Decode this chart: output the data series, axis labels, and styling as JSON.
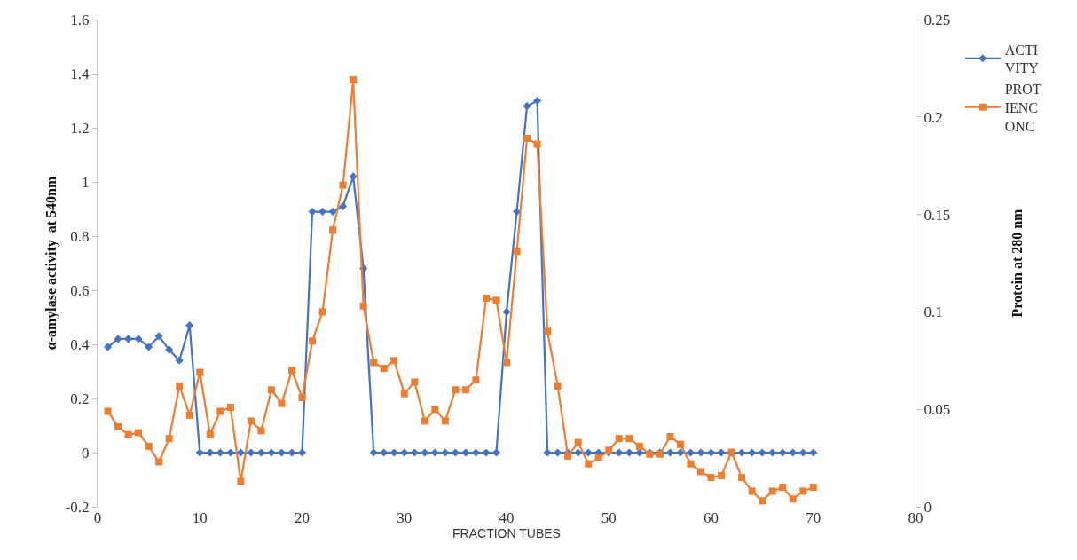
{
  "chart_data": {
    "type": "line",
    "xlabel": "FRACTION TUBES",
    "ylabel": "α-amylase activity  at 540nm",
    "y2label": "Protein at 280 nm",
    "x": [
      1,
      2,
      3,
      4,
      5,
      6,
      7,
      8,
      9,
      10,
      11,
      12,
      13,
      14,
      15,
      16,
      17,
      18,
      19,
      20,
      21,
      22,
      23,
      24,
      25,
      26,
      27,
      28,
      29,
      30,
      31,
      32,
      33,
      34,
      35,
      36,
      37,
      38,
      39,
      40,
      41,
      42,
      43,
      44,
      45,
      46,
      47,
      48,
      49,
      50,
      51,
      52,
      53,
      54,
      55,
      56,
      57,
      58,
      59,
      60,
      61,
      62,
      63,
      64,
      65,
      66,
      67,
      68,
      69,
      70
    ],
    "series": [
      {
        "name": "ACTIVITY",
        "color": "#4472c4",
        "marker": "diamond",
        "values": [
          0.39,
          0.42,
          0.42,
          0.42,
          0.39,
          0.43,
          0.38,
          0.34,
          0.47,
          0,
          0,
          0,
          0,
          0,
          0,
          0,
          0,
          0,
          0,
          0,
          0.89,
          0.89,
          0.89,
          0.91,
          1.02,
          0.68,
          0,
          0,
          0,
          0,
          0,
          0,
          0,
          0,
          0,
          0,
          0,
          0,
          0,
          0.52,
          0.89,
          1.28,
          1.3,
          0,
          0,
          0,
          0,
          0,
          0,
          0,
          0,
          0,
          0,
          0,
          0,
          0,
          0,
          0,
          0,
          0,
          0,
          0,
          0,
          0,
          0,
          0,
          0,
          0,
          0,
          0
        ]
      },
      {
        "name": "PROTIENCONC",
        "color": "#ed7d31",
        "marker": "square",
        "axis": "y2",
        "values": [
          0.049,
          0.041,
          0.037,
          0.038,
          0.031,
          0.023,
          0.035,
          0.062,
          0.047,
          0.069,
          0.037,
          0.049,
          0.051,
          0.013,
          0.044,
          0.039,
          0.06,
          0.053,
          0.07,
          0.056,
          0.085,
          0.1,
          0.142,
          0.165,
          0.219,
          0.103,
          0.074,
          0.071,
          0.075,
          0.058,
          0.064,
          0.044,
          0.05,
          0.044,
          0.06,
          0.06,
          0.065,
          0.107,
          0.106,
          0.074,
          0.131,
          0.189,
          0.186,
          0.09,
          0.062,
          0.026,
          0.033,
          0.022,
          0.025,
          0.029,
          0.035,
          0.035,
          0.031,
          0.027,
          0.027,
          0.036,
          0.032,
          0.022,
          0.018,
          0.015,
          0.016,
          0.028,
          0.015,
          0.008,
          0.003,
          0.008,
          0.01,
          0.004,
          0.008,
          0.01
        ]
      }
    ],
    "xlim": [
      0,
      80
    ],
    "xticks": [
      0,
      10,
      20,
      30,
      40,
      50,
      60,
      70,
      80
    ],
    "ylim": [
      -0.2,
      1.6
    ],
    "yticks": [
      -0.2,
      0,
      0.2,
      0.4,
      0.6,
      0.8,
      1,
      1.2,
      1.4,
      1.6
    ],
    "y2lim": [
      0,
      0.25
    ],
    "y2ticks": [
      0,
      0.05,
      0.1,
      0.15,
      0.2,
      0.25
    ],
    "legend": "right",
    "line_style": "solid"
  }
}
